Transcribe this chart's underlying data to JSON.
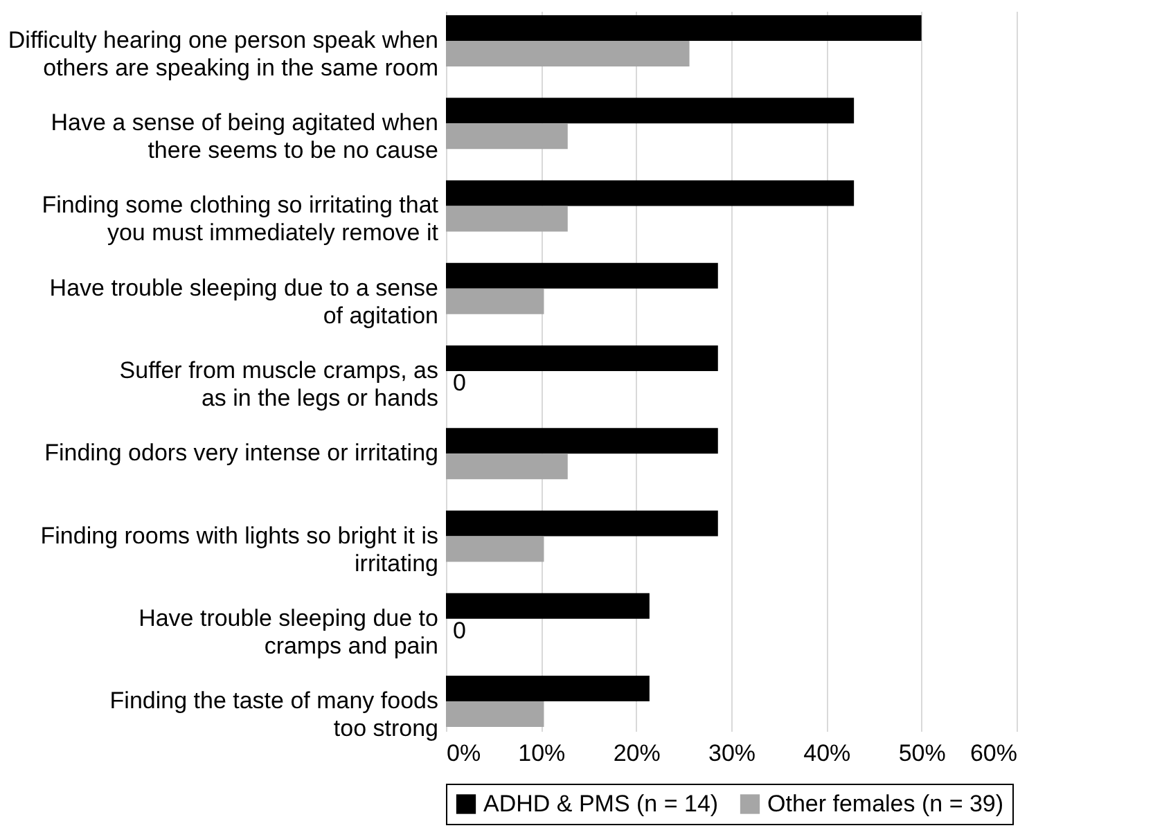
{
  "chart_data": {
    "type": "bar",
    "orientation": "horizontal",
    "categories": [
      "Difficulty hearing one person speak when\nothers are speaking in the same room",
      "Have a sense of being agitated when\nthere seems to be no cause",
      "Finding some clothing so irritating that\nyou must immediately remove it",
      "Have trouble sleeping due to a sense\nof agitation",
      "Suffer from muscle cramps, as\nas in the legs or hands",
      "Finding odors very intense or irritating",
      "Finding rooms with lights so bright it is\nirritating",
      "Have trouble sleeping due to\ncramps and pain",
      "Finding the taste of many foods\ntoo strong"
    ],
    "series": [
      {
        "name": "ADHD & PMS (n = 14)",
        "color": "#000000",
        "values": [
          50,
          42.9,
          42.9,
          28.6,
          28.6,
          28.6,
          28.6,
          21.4,
          21.4
        ]
      },
      {
        "name": "Other females (n = 39)",
        "color": "#a6a6a6",
        "values": [
          25.6,
          12.8,
          12.8,
          10.3,
          0,
          12.8,
          10.3,
          0,
          10.3
        ],
        "value_labels": [
          null,
          null,
          null,
          null,
          "0",
          null,
          null,
          "0",
          null
        ]
      }
    ],
    "xlim": [
      0,
      60
    ],
    "xticks": [
      {
        "value": 0,
        "label": "0%"
      },
      {
        "value": 10,
        "label": "10%"
      },
      {
        "value": 20,
        "label": "20%"
      },
      {
        "value": 30,
        "label": "30%"
      },
      {
        "value": 40,
        "label": "40%"
      },
      {
        "value": 50,
        "label": "50%"
      },
      {
        "value": 60,
        "label": "60%"
      }
    ],
    "grid": "x",
    "legend": "bottom"
  }
}
